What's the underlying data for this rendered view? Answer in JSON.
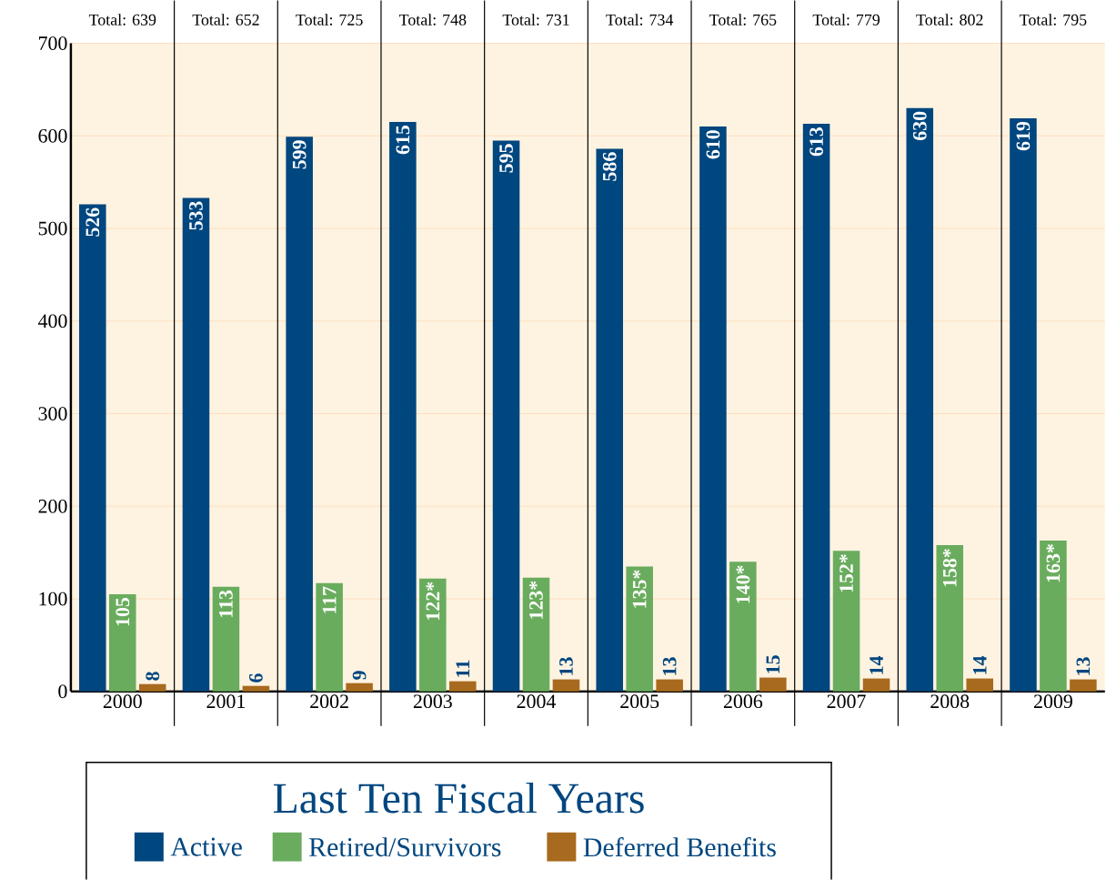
{
  "chart_data": {
    "type": "bar",
    "legend_title": "Last Ten Fiscal Years",
    "categories": [
      "2000",
      "2001",
      "2002",
      "2003",
      "2004",
      "2005",
      "2006",
      "2007",
      "2008",
      "2009"
    ],
    "series": [
      {
        "name": "Active",
        "color": "#00467f",
        "values": [
          526,
          533,
          599,
          615,
          595,
          586,
          610,
          613,
          630,
          619
        ],
        "value_labels": [
          "526",
          "533",
          "599",
          "615",
          "595",
          "586",
          "610",
          "613",
          "630",
          "619"
        ]
      },
      {
        "name": "Retired/Survivors",
        "color": "#6aac5e",
        "values": [
          105,
          113,
          117,
          122,
          123,
          135,
          140,
          152,
          158,
          163
        ],
        "value_labels": [
          "105",
          "113",
          "117",
          "122*",
          "123*",
          "135*",
          "140*",
          "152*",
          "158*",
          "163*"
        ]
      },
      {
        "name": "Deferred Benefits",
        "color": "#a86a1e",
        "values": [
          8,
          6,
          9,
          11,
          13,
          13,
          15,
          14,
          14,
          13
        ],
        "value_labels": [
          "8",
          "6",
          "9",
          "11",
          "13",
          "13",
          "15",
          "14",
          "14",
          "13"
        ]
      }
    ],
    "annotations": [
      "Total: 639",
      "Total: 652",
      "Total: 725",
      "Total: 748",
      "Total: 731",
      "Total: 734",
      "Total: 765",
      "Total: 779",
      "Total: 802",
      "Total: 795"
    ],
    "ylim": [
      0,
      700
    ],
    "yticks": [
      0,
      100,
      200,
      300,
      400,
      500,
      600,
      700
    ],
    "grid": "y",
    "legend": "bottom"
  }
}
